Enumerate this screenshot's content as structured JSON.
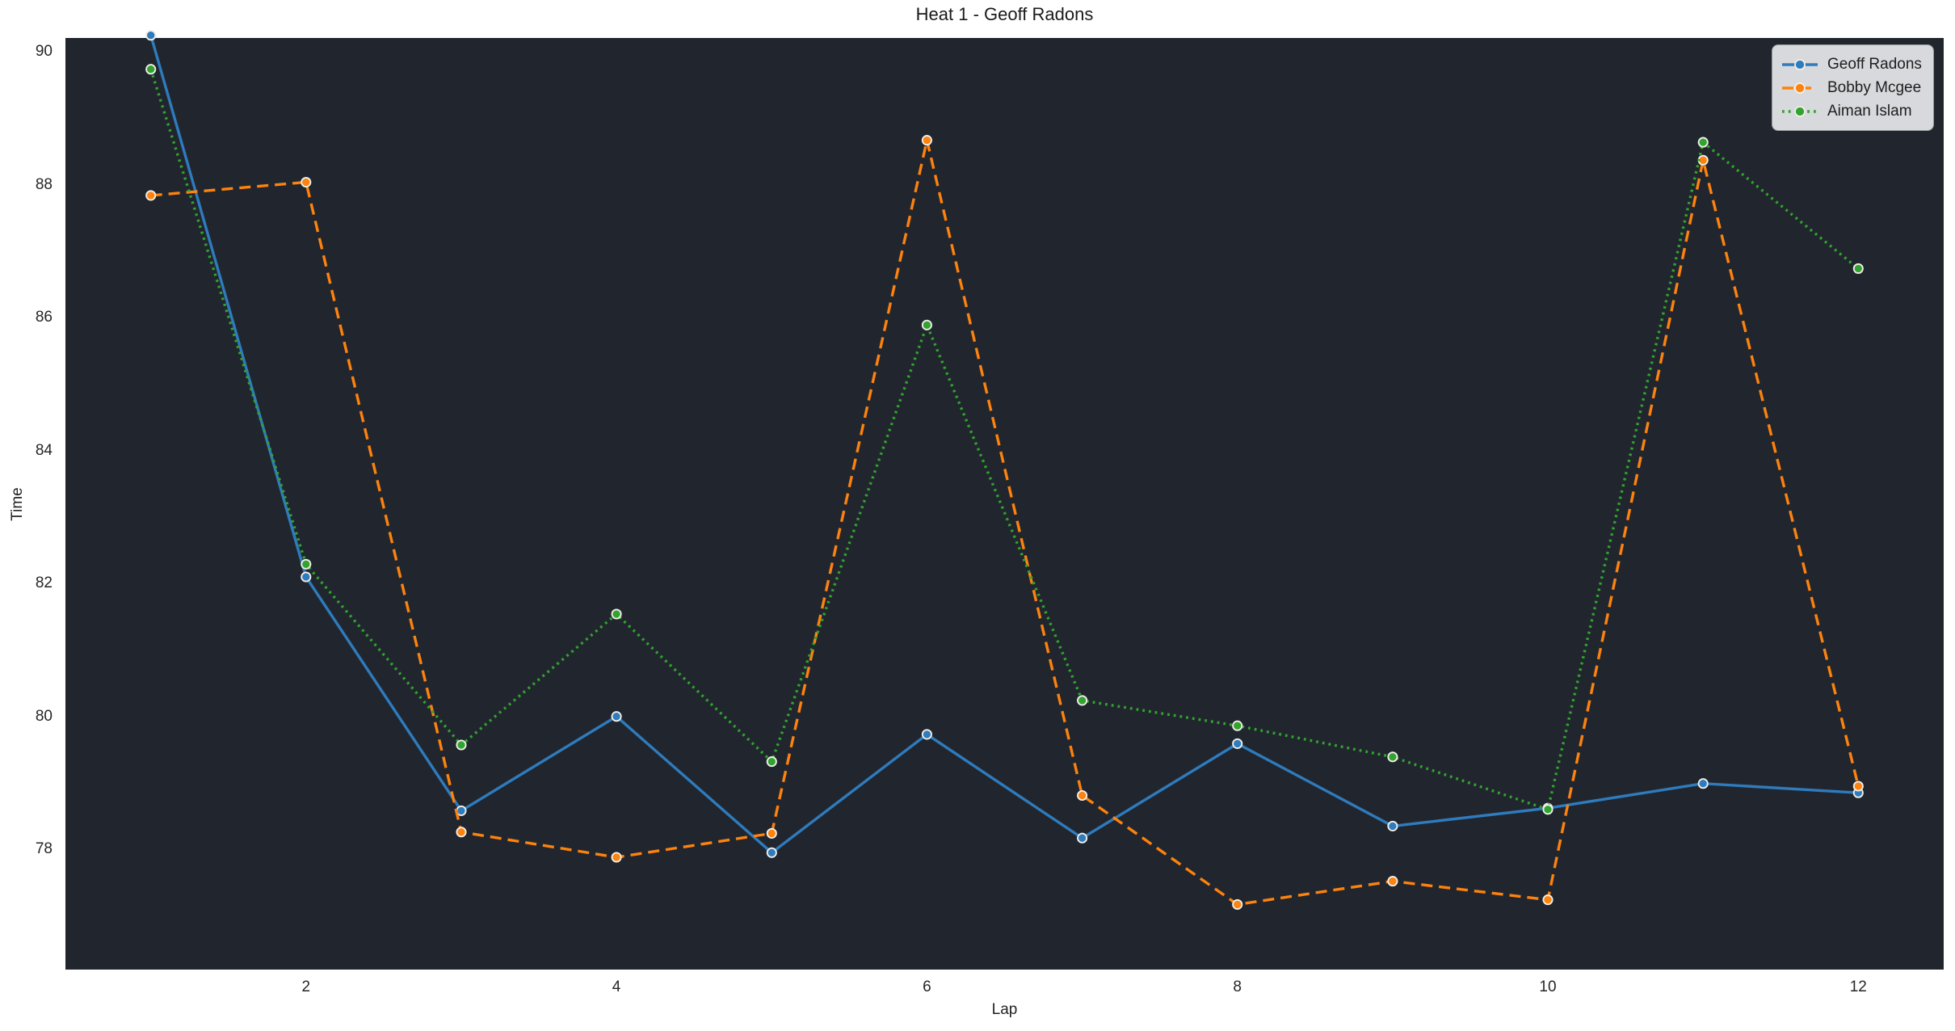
{
  "chart_data": {
    "type": "line",
    "title": "Heat 1 - Geoff Radons",
    "xlabel": "Lap",
    "ylabel": "Time",
    "x": [
      1,
      2,
      3,
      4,
      5,
      6,
      7,
      8,
      9,
      10,
      11,
      12
    ],
    "series": [
      {
        "name": "Geoff Radons",
        "color": "#2e7bbd",
        "linestyle": "solid",
        "marker": "circle",
        "values": [
          90.25,
          82.1,
          78.58,
          80.0,
          77.95,
          79.73,
          78.17,
          79.59,
          78.35,
          78.62,
          78.99,
          78.85
        ]
      },
      {
        "name": "Bobby Mcgee",
        "color": "#fd820e",
        "linestyle": "dashed",
        "marker": "circle",
        "values": [
          87.84,
          88.04,
          78.26,
          77.88,
          78.24,
          88.67,
          78.81,
          77.17,
          77.52,
          77.24,
          88.37,
          78.95
        ]
      },
      {
        "name": "Aiman Islam",
        "color": "#31a32e",
        "linestyle": "dotted",
        "marker": "circle",
        "values": [
          89.74,
          82.29,
          79.57,
          81.54,
          79.32,
          85.89,
          80.24,
          79.86,
          79.39,
          78.6,
          88.64,
          86.74
        ]
      }
    ],
    "xticks": [
      "2",
      "4",
      "6",
      "8",
      "10",
      "12"
    ],
    "xtick_values": [
      2,
      4,
      6,
      8,
      10,
      12
    ],
    "yticks": [
      "78",
      "80",
      "82",
      "84",
      "86",
      "88",
      "90"
    ],
    "ytick_values": [
      78,
      80,
      82,
      84,
      86,
      88,
      90
    ],
    "xlim": [
      0.45,
      12.55
    ],
    "ylim": [
      76.19,
      90.21
    ],
    "grid": false,
    "legend_position": "upper right",
    "plot_background": "#21262e",
    "marker_edge_color": "#f0eee8",
    "legend_background": "#d7d9dc",
    "legend_border": "#989da3",
    "legend_entries": [
      "Geoff Radons",
      "Bobby Mcgee",
      "Aiman Islam"
    ]
  }
}
